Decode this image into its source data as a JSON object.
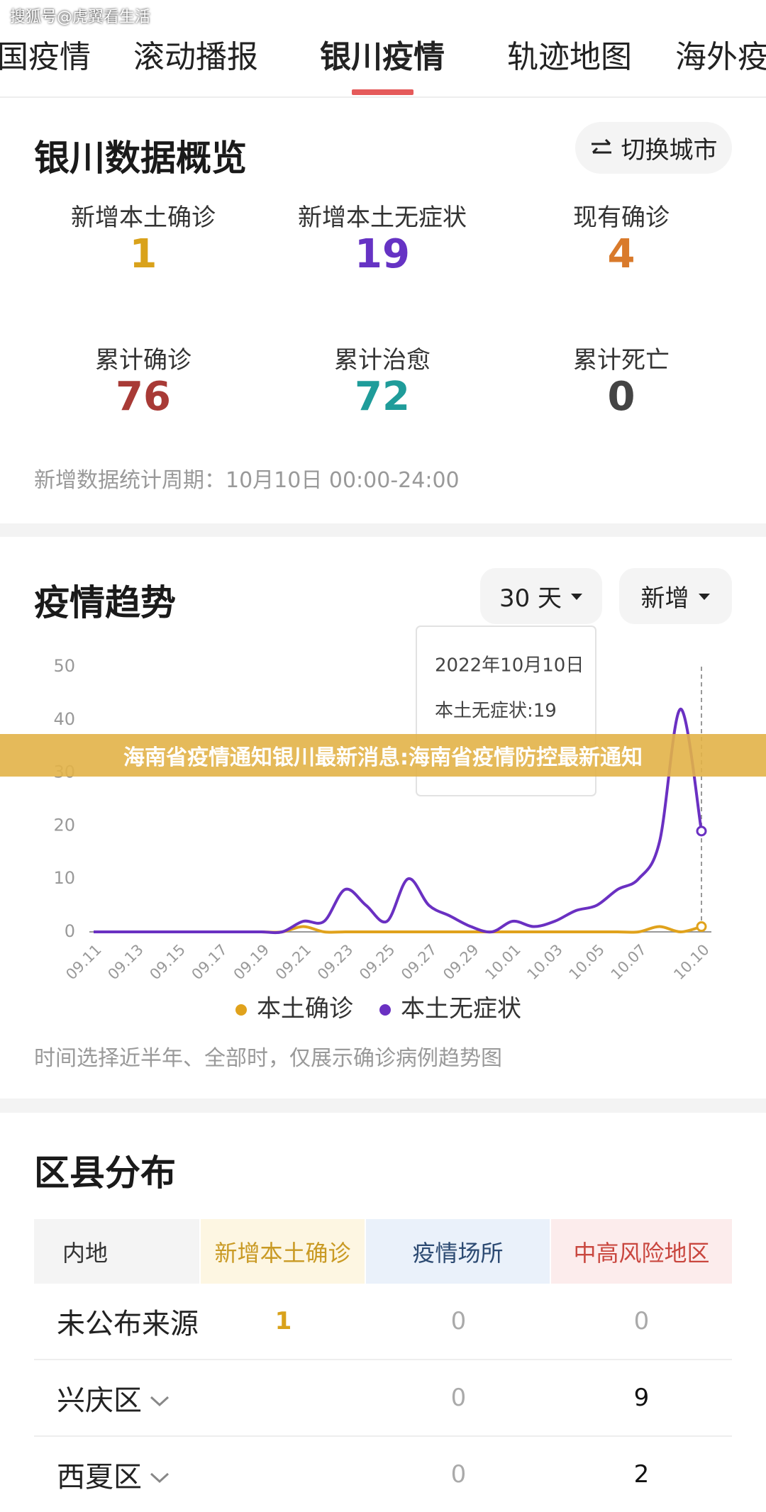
{
  "watermark": "搜狐号@虎翼看生活",
  "tabs": [
    "全国疫情",
    "滚动播报",
    "银川疫情",
    "轨迹地图",
    "海外疫情"
  ],
  "overview": {
    "title": "银川数据概览",
    "switch_button": "切换城市",
    "stats": [
      {
        "label": "新增本土确诊",
        "value": 1,
        "color": "#d9a21b"
      },
      {
        "label": "新增本土无症状",
        "value": 19,
        "color": "#6633c4"
      },
      {
        "label": "现有确诊",
        "value": 4,
        "color": "#d97a2b"
      },
      {
        "label": "累计确诊",
        "value": 76,
        "color": "#a83a36"
      },
      {
        "label": "累计治愈",
        "value": 72,
        "color": "#1f9c9a"
      },
      {
        "label": "累计死亡",
        "value": 0,
        "color": "#444444"
      }
    ],
    "note": "新增数据统计周期：10月10日 00:00-24:00"
  },
  "trend": {
    "title": "疫情趋势",
    "range_dropdown": "30 天",
    "metric_dropdown": "新增",
    "tooltip": {
      "date": "2022年10月10日",
      "label": "本土无症状:19"
    },
    "note": "时间选择近半年、全部时，仅展示确诊病例趋势图"
  },
  "chart_data": {
    "type": "line",
    "categories": [
      "09.11",
      null,
      "09.13",
      null,
      "09.15",
      null,
      "09.17",
      null,
      "09.19",
      null,
      "09.21",
      null,
      "09.23",
      null,
      "09.25",
      null,
      "09.27",
      null,
      "09.29",
      null,
      "10.01",
      null,
      "10.03",
      null,
      "10.05",
      null,
      "10.07",
      null,
      null,
      "10.10"
    ],
    "series": [
      {
        "name": "本土确诊",
        "color": "#e0a21c",
        "values": [
          0,
          0,
          0,
          0,
          0,
          0,
          0,
          0,
          0,
          0,
          1,
          0,
          0,
          0,
          0,
          0,
          0,
          0,
          0,
          0,
          0,
          0,
          0,
          0,
          0,
          0,
          0,
          1,
          0,
          1
        ]
      },
      {
        "name": "本土无症状",
        "color": "#6a30c2",
        "values": [
          0,
          0,
          0,
          0,
          0,
          0,
          0,
          0,
          0,
          0,
          2,
          2,
          8,
          5,
          2,
          10,
          5,
          3,
          1,
          0,
          2,
          1,
          2,
          4,
          5,
          8,
          10,
          17,
          42,
          19
        ]
      }
    ],
    "ylim": [
      0,
      50
    ],
    "yticks": [
      0,
      10,
      20,
      30,
      40,
      50
    ],
    "grid": false
  },
  "banner": "海南省疫情通知银川最新消息:海南省疫情防控最新通知",
  "district": {
    "title": "区县分布",
    "header": [
      "内地",
      "新增本土确诊",
      "疫情场所",
      "中高风险地区"
    ],
    "rows": [
      [
        "未公布来源",
        1,
        0,
        0
      ],
      [
        "兴庆区",
        null,
        0,
        9
      ],
      [
        "西夏区",
        null,
        0,
        2
      ]
    ]
  }
}
